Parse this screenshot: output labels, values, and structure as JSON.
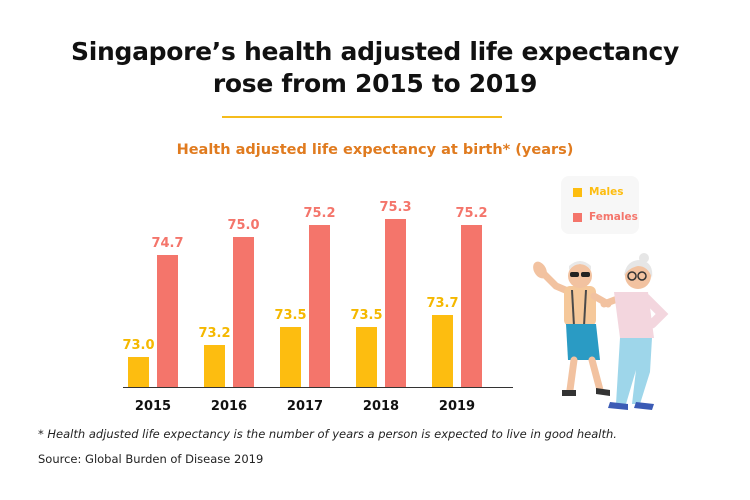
{
  "title": {
    "line1": "Singapore’s health adjusted life expectancy",
    "line2": "rose from 2015 to 2019"
  },
  "colors": {
    "males": "#FDBD10",
    "females": "#F4756B",
    "accent": "#F5BC1C",
    "subtitle": "#E07B1F"
  },
  "legend": {
    "males": "Males",
    "females": "Females"
  },
  "footnote": "* Health adjusted life expectancy is the number of years a person is expected to live in good health.",
  "source": "Source: Global Burden of Disease 2019",
  "illustration": {
    "icon": "elderly-couple-dancing-illustration"
  },
  "chart_data": {
    "type": "bar",
    "title": "Health adjusted life expectancy at birth* (years)",
    "categories": [
      "2015",
      "2016",
      "2017",
      "2018",
      "2019"
    ],
    "series": [
      {
        "name": "Males",
        "values": [
          73.0,
          73.2,
          73.5,
          73.5,
          73.7
        ]
      },
      {
        "name": "Females",
        "values": [
          74.7,
          75.0,
          75.2,
          75.3,
          75.2
        ]
      }
    ],
    "ylim": [
      72.5,
      75.5
    ],
    "grid": false,
    "legend_position": "top-right"
  }
}
